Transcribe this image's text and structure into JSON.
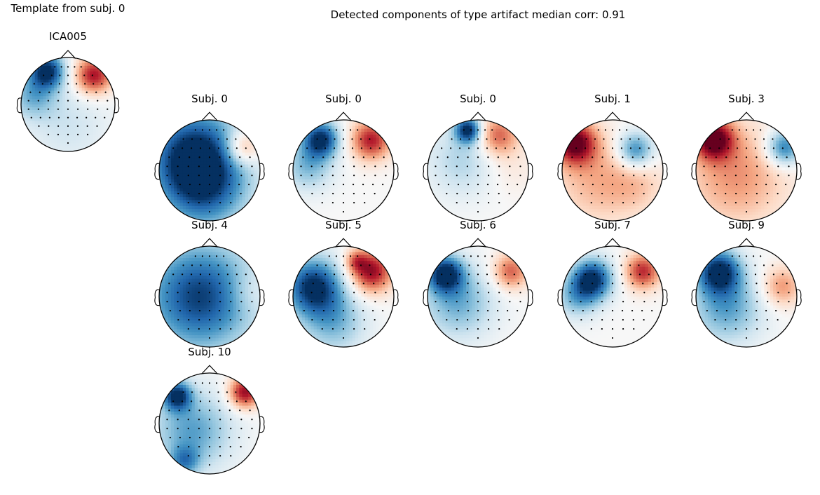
{
  "template_panel": {
    "heading": "Template from subj. 0",
    "component_label": "ICA005",
    "sign": 1,
    "blobs": [
      {
        "u": -0.45,
        "v": 0.72,
        "w": -1.0,
        "s": 0.26
      },
      {
        "u": -0.75,
        "v": 0.2,
        "w": -0.45,
        "s": 0.35
      },
      {
        "u": 0.55,
        "v": 0.62,
        "w": 0.85,
        "s": 0.28
      },
      {
        "u": 0.0,
        "v": -0.4,
        "w": -0.2,
        "s": 0.6
      }
    ]
  },
  "detected_panel": {
    "heading": "Detected components of type artifact median corr: 0.91"
  },
  "colors": {
    "negative": "#053061",
    "neutral": "#f7f7f7",
    "positive": "#67001f",
    "outline": "#000000"
  },
  "topomaps": [
    {
      "label": "Subj. 0",
      "sign": 1,
      "blobs": [
        {
          "u": -0.3,
          "v": 0.3,
          "w": -1.0,
          "s": 0.65
        },
        {
          "u": -0.1,
          "v": -0.4,
          "w": -0.6,
          "s": 0.6
        },
        {
          "u": 0.65,
          "v": 0.45,
          "w": 0.55,
          "s": 0.25
        }
      ]
    },
    {
      "label": "Subj. 0",
      "sign": 1,
      "blobs": [
        {
          "u": -0.45,
          "v": 0.62,
          "w": -1.0,
          "s": 0.25
        },
        {
          "u": -0.7,
          "v": 0.1,
          "w": -0.45,
          "s": 0.35
        },
        {
          "u": 0.55,
          "v": 0.6,
          "w": 0.8,
          "s": 0.28
        }
      ]
    },
    {
      "label": "Subj. 0",
      "sign": 1,
      "blobs": [
        {
          "u": -0.2,
          "v": 0.8,
          "w": -1.0,
          "s": 0.18
        },
        {
          "u": -0.3,
          "v": 0.2,
          "w": -0.3,
          "s": 0.5
        },
        {
          "u": 0.4,
          "v": 0.7,
          "w": 0.6,
          "s": 0.28
        },
        {
          "u": 0.6,
          "v": 0.1,
          "w": 0.12,
          "s": 0.4
        }
      ]
    },
    {
      "label": "Subj. 1",
      "sign": 1,
      "blobs": [
        {
          "u": -0.75,
          "v": 0.55,
          "w": 1.0,
          "s": 0.3
        },
        {
          "u": -0.3,
          "v": -0.2,
          "w": 0.35,
          "s": 0.6
        },
        {
          "u": 0.45,
          "v": 0.4,
          "w": -0.7,
          "s": 0.25
        },
        {
          "u": 0.5,
          "v": -0.3,
          "w": 0.2,
          "s": 0.4
        }
      ]
    },
    {
      "label": "Subj. 3",
      "sign": 1,
      "blobs": [
        {
          "u": -0.65,
          "v": 0.62,
          "w": 1.0,
          "s": 0.28
        },
        {
          "u": -0.2,
          "v": -0.1,
          "w": 0.45,
          "s": 0.7
        },
        {
          "u": 0.75,
          "v": 0.45,
          "w": -0.75,
          "s": 0.25
        }
      ]
    },
    {
      "label": "Subj. 4",
      "sign": 1,
      "blobs": [
        {
          "u": -0.2,
          "v": 0.0,
          "w": -0.95,
          "s": 0.75
        },
        {
          "u": 0.75,
          "v": 0.1,
          "w": 0.15,
          "s": 0.3
        }
      ]
    },
    {
      "label": "Subj. 5",
      "sign": 1,
      "blobs": [
        {
          "u": -0.6,
          "v": 0.2,
          "w": -1.0,
          "s": 0.4
        },
        {
          "u": -0.2,
          "v": -0.5,
          "w": -0.45,
          "s": 0.45
        },
        {
          "u": 0.55,
          "v": 0.5,
          "w": 0.9,
          "s": 0.3
        },
        {
          "u": 0.25,
          "v": 0.7,
          "w": 0.4,
          "s": 0.15
        }
      ]
    },
    {
      "label": "Subj. 6",
      "sign": 1,
      "blobs": [
        {
          "u": -0.65,
          "v": 0.45,
          "w": -1.0,
          "s": 0.25
        },
        {
          "u": -0.4,
          "v": -0.1,
          "w": -0.5,
          "s": 0.5
        },
        {
          "u": 0.65,
          "v": 0.5,
          "w": 0.6,
          "s": 0.25
        }
      ]
    },
    {
      "label": "Subj. 7",
      "sign": 1,
      "blobs": [
        {
          "u": -0.4,
          "v": 0.35,
          "w": -1.0,
          "s": 0.28
        },
        {
          "u": -0.7,
          "v": 0.0,
          "w": -0.45,
          "s": 0.3
        },
        {
          "u": 0.6,
          "v": 0.5,
          "w": 0.75,
          "s": 0.25
        }
      ]
    },
    {
      "label": "Subj. 9",
      "sign": 1,
      "blobs": [
        {
          "u": -0.55,
          "v": 0.5,
          "w": -1.0,
          "s": 0.3
        },
        {
          "u": -0.4,
          "v": -0.2,
          "w": -0.55,
          "s": 0.5
        },
        {
          "u": 0.7,
          "v": 0.2,
          "w": 0.45,
          "s": 0.28
        }
      ]
    },
    {
      "label": "Subj. 10",
      "sign": 1,
      "blobs": [
        {
          "u": -0.65,
          "v": 0.55,
          "w": -0.95,
          "s": 0.2
        },
        {
          "u": -0.35,
          "v": -0.15,
          "w": -0.55,
          "s": 0.55
        },
        {
          "u": 0.7,
          "v": 0.62,
          "w": 0.9,
          "s": 0.22
        },
        {
          "u": -0.5,
          "v": -0.75,
          "w": -0.5,
          "s": 0.2
        }
      ]
    }
  ]
}
